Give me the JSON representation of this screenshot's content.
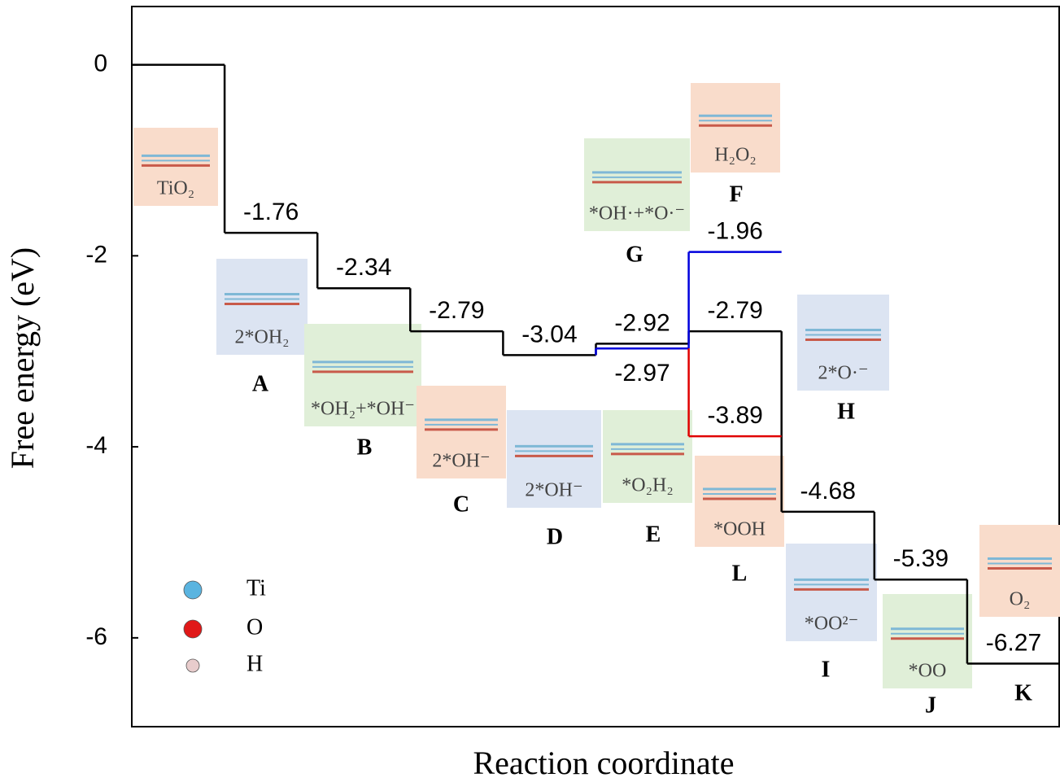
{
  "chart_data": {
    "type": "step",
    "x_label": "Reaction coordinate",
    "y_label": "Free energy (eV)",
    "categories": [
      null,
      null,
      null,
      null,
      null,
      null,
      null,
      null,
      null,
      null
    ],
    "ylim": [
      -6.93,
      0.61
    ],
    "yticks": [
      0,
      -2,
      -4,
      -6
    ],
    "series": [
      {
        "color": "#000000",
        "values": [
          0,
          -1.76,
          -2.34,
          -2.79,
          -3.04,
          -2.92,
          -2.79,
          -4.68,
          -5.39,
          -6.27
        ],
        "value_labels": [
          null,
          "-1.76",
          "-2.34",
          "-2.79",
          "-3.04",
          "-2.92",
          "-2.79",
          "-4.68",
          "-5.39",
          "-6.27"
        ]
      },
      {
        "color": "#0000dd",
        "values": [
          null,
          null,
          null,
          null,
          null,
          -2.97,
          -1.96,
          null,
          null,
          null
        ]
      },
      {
        "color": "#e00000",
        "values": [
          null,
          null,
          null,
          null,
          null,
          null,
          -3.89,
          null,
          null,
          null
        ]
      }
    ],
    "states": [
      {
        "letter": null,
        "caption": "TiO₂",
        "color": "#f9dccb"
      },
      {
        "letter": "A",
        "caption": "2*OH₂",
        "color": "#dce4f2"
      },
      {
        "letter": "B",
        "caption": "*OH₂+*OH⁻",
        "color": "#e0efd8"
      },
      {
        "letter": "C",
        "caption": "2*OH⁻",
        "color": "#f9dccb"
      },
      {
        "letter": "D",
        "caption": "2*OH⁻",
        "color": "#dce4f2"
      },
      {
        "letter": "E",
        "caption": "*O₂H₂",
        "color": "#e0efd8"
      },
      {
        "letter": "G",
        "caption": "*OH·+*O·⁻",
        "color": "#e0efd8"
      },
      {
        "letter": "F",
        "caption": "H₂O₂",
        "color": "#f9dccb"
      },
      {
        "letter": "H",
        "caption": "2*O·⁻",
        "color": "#dce4f2"
      },
      {
        "letter": "L",
        "caption": "*OOH",
        "color": "#f9dccb"
      },
      {
        "letter": "I",
        "caption": "*OO²⁻",
        "color": "#dce4f2"
      },
      {
        "letter": "J",
        "caption": "*OO",
        "color": "#e0efd8"
      },
      {
        "letter": "K",
        "caption": "O₂",
        "color": "#f9dccb"
      }
    ],
    "atom_legend": [
      {
        "name": "Ti",
        "color": "#5ab4e0"
      },
      {
        "name": "O",
        "color": "#e01818"
      },
      {
        "name": "H",
        "color": "#e8cccc"
      }
    ]
  }
}
